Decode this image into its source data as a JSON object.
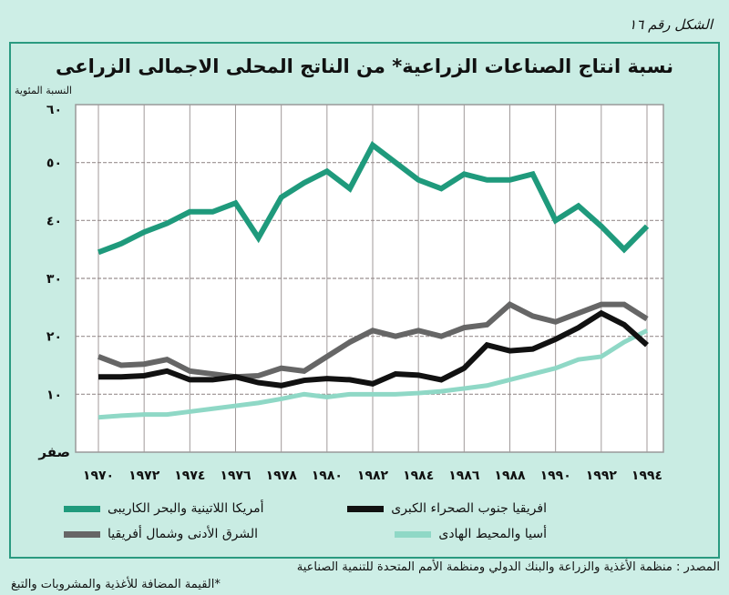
{
  "figure_number": "الشكل رقم ١٦",
  "footnote": "*القيمة المضافة للأغذية والمشروبات والتبغ",
  "source": "المصدر : منظمة الأغذية والزراعة والبنك الدولي ومنظمة الأمم المتحدة للتنمية الصناعية",
  "chart_data": {
    "type": "line",
    "title": "نسبة انتاج الصناعات الزراعية* من الناتج المحلى الاجمالى الزراعى",
    "ylabel": "النسبة المئوية",
    "xlabel": "",
    "ylim": [
      0,
      60
    ],
    "xlim": [
      1970,
      1994
    ],
    "grid": true,
    "yticks": [
      0,
      10,
      20,
      30,
      40,
      50,
      60
    ],
    "ytick_labels": [
      "صفر",
      "١٠",
      "٢٠",
      "٣٠",
      "٤٠",
      "٥٠",
      "٦٠"
    ],
    "xticks": [
      1970,
      1972,
      1974,
      1976,
      1978,
      1980,
      1982,
      1984,
      1986,
      1988,
      1990,
      1992,
      1994
    ],
    "xtick_labels": [
      "١٩٧٠",
      "١٩٧٢",
      "١٩٧٤",
      "١٩٧٦",
      "١٩٧٨",
      "١٩٨٠",
      "١٩٨٢",
      "١٩٨٤",
      "١٩٨٦",
      "١٩٨٨",
      "١٩٩٠",
      "١٩٩٢",
      "١٩٩٤"
    ],
    "x": [
      1970,
      1971,
      1972,
      1973,
      1974,
      1975,
      1976,
      1977,
      1978,
      1979,
      1980,
      1981,
      1982,
      1983,
      1984,
      1985,
      1986,
      1987,
      1988,
      1989,
      1990,
      1991,
      1992,
      1993,
      1994
    ],
    "series": [
      {
        "name": "أمريكا اللاتينية والبحر الكاريبى",
        "color": "#1f9a7c",
        "values": [
          34.5,
          36,
          38,
          39.5,
          41.5,
          41.5,
          43,
          37,
          44,
          46.5,
          48.5,
          45.5,
          53,
          50,
          47,
          45.5,
          48,
          47,
          47,
          48,
          40,
          42.5,
          39,
          35,
          39
        ]
      },
      {
        "name": "افريقيا جنوب الصحراء الكبرى",
        "color": "#111111",
        "values": [
          13,
          13,
          13.2,
          14,
          12.5,
          12.5,
          13,
          12,
          11.5,
          12.4,
          12.7,
          12.5,
          11.8,
          13.5,
          13.3,
          12.5,
          14.5,
          18.5,
          17.5,
          17.8,
          19.5,
          21.5,
          24,
          22,
          18.5
        ]
      },
      {
        "name": "الشرق الأدنى وشمال أفريقيا",
        "color": "#666666",
        "values": [
          16.5,
          15,
          15.2,
          16,
          14,
          13.5,
          13,
          13.2,
          14.5,
          14,
          16.5,
          19,
          21,
          20,
          21,
          20,
          21.5,
          22,
          25.5,
          23.5,
          22.5,
          24,
          25.5,
          25.5,
          23
        ]
      },
      {
        "name": "أسيا والمحيط الهادى",
        "color": "#8fd8c6",
        "values": [
          6,
          6.3,
          6.5,
          6.5,
          7,
          7.5,
          8,
          8.5,
          9.2,
          10,
          9.5,
          10,
          10,
          10,
          10.2,
          10.5,
          11,
          11.5,
          12.5,
          13.5,
          14.5,
          16,
          16.5,
          19,
          21
        ]
      }
    ],
    "legend_position": "bottom"
  }
}
